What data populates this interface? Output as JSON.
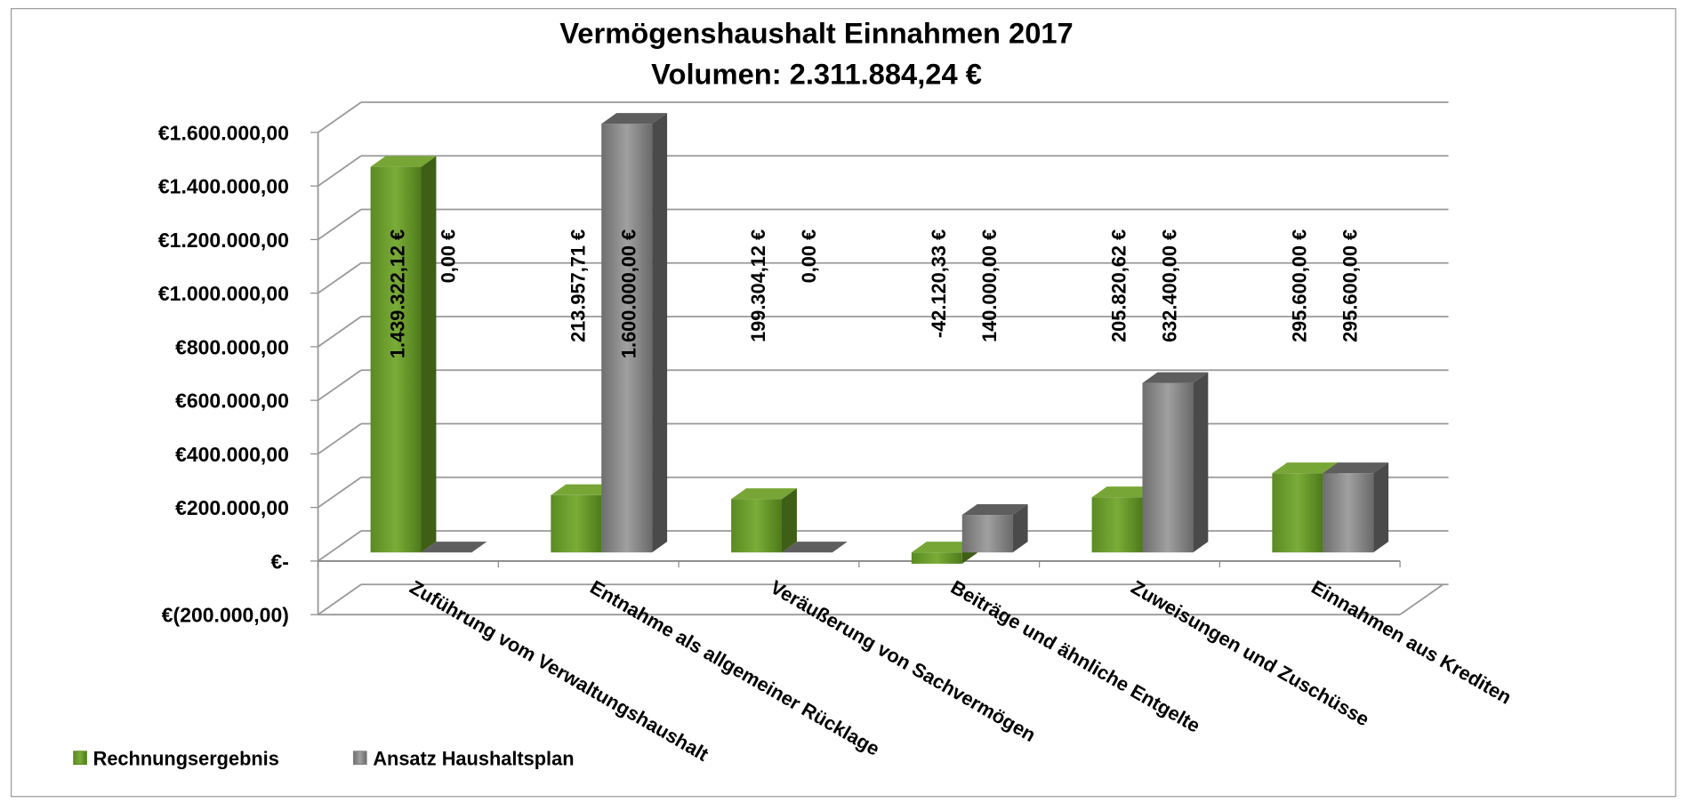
{
  "chart_data": {
    "type": "bar3d",
    "title": "Vermögenshaushalt Einnahmen 2017",
    "subtitle": "Volumen: 2.311.884,24 €",
    "categories": [
      "Zuführung vom Verwaltungshaushalt",
      "Entnahme als allgemeiner Rücklage",
      "Veräußerung von Sachvermögen",
      "Beiträge und ähnliche Entgelte",
      "Zuweisungen und Zuschüsse",
      "Einnahmen aus Krediten"
    ],
    "series": [
      {
        "name": "Rechnungsergebnis",
        "color": "#5e8c24",
        "values": [
          1439322.12,
          213957.71,
          199304.12,
          -42120.33,
          205820.62,
          295600.0
        ],
        "value_labels": [
          "1.439.322,12 €",
          "213.957,71 €",
          "199.304,12 €",
          "-42.120,33 €",
          "205.820,62 €",
          "295.600,00 €"
        ]
      },
      {
        "name": "Ansatz Haushaltsplan",
        "color": "#808080",
        "values": [
          0,
          1600000,
          0,
          140000,
          632400,
          295600
        ],
        "value_labels": [
          "0,00 €",
          "1.600.000,00 €",
          "0,00 €",
          "140.000,00 €",
          "632.400,00 €",
          "295.600,00 €"
        ]
      }
    ],
    "ylim": [
      -200000,
      1600000
    ],
    "yticks": [
      {
        "value": -200000,
        "label": "€(200.000,00)"
      },
      {
        "value": 0,
        "label": "€-"
      },
      {
        "value": 200000,
        "label": "€200.000,00"
      },
      {
        "value": 400000,
        "label": "€400.000,00"
      },
      {
        "value": 600000,
        "label": "€600.000,00"
      },
      {
        "value": 800000,
        "label": "€800.000,00"
      },
      {
        "value": 1000000,
        "label": "€1.000.000,00"
      },
      {
        "value": 1200000,
        "label": "€1.200.000,00"
      },
      {
        "value": 1400000,
        "label": "€1.400.000,00"
      },
      {
        "value": 1600000,
        "label": "€1.600.000,00"
      }
    ],
    "grid": true,
    "legend": "bottom-left"
  }
}
